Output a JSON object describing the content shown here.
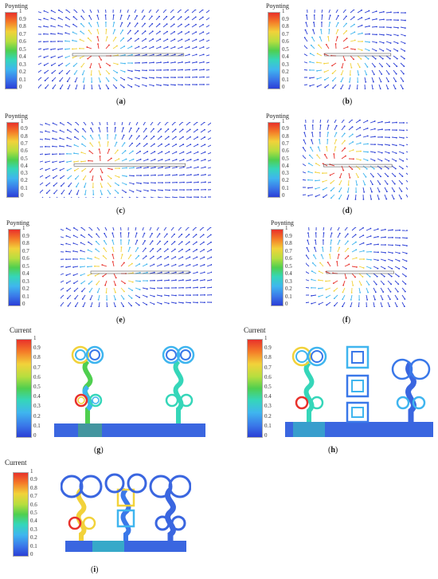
{
  "colorbar": {
    "poynting_title": "Poynting",
    "current_title": "Current",
    "ticks": [
      "1",
      "0.9",
      "0.8",
      "0.7",
      "0.6",
      "0.5",
      "0.4",
      "0.3",
      "0.2",
      "0.1",
      "0"
    ]
  },
  "panels": [
    {
      "id": "a",
      "legend": "poynting",
      "caption_pre": "(",
      "label": "a",
      "caption_post": ")"
    },
    {
      "id": "b",
      "legend": "poynting",
      "caption_pre": "(",
      "label": "b",
      "caption_post": ")"
    },
    {
      "id": "c",
      "legend": "poynting",
      "caption_pre": "(",
      "label": "c",
      "caption_post": ")"
    },
    {
      "id": "d",
      "legend": "poynting",
      "caption_pre": "(",
      "label": "d",
      "caption_post": ")"
    },
    {
      "id": "e",
      "legend": "poynting",
      "caption_pre": "(",
      "label": "e",
      "caption_post": ")"
    },
    {
      "id": "f",
      "legend": "poynting",
      "caption_pre": "(",
      "label": "f",
      "caption_post": ")"
    },
    {
      "id": "g",
      "legend": "current",
      "caption_pre": "(",
      "label": "g",
      "caption_post": ")"
    },
    {
      "id": "h",
      "legend": "current",
      "caption_pre": "(",
      "label": "h",
      "caption_post": ")"
    },
    {
      "id": "i",
      "legend": "current",
      "caption_pre": "(",
      "label": "i",
      "caption_post": ")"
    }
  ],
  "colors": {
    "arrow": "#2b3fd6",
    "hot": "#e8312b",
    "warm": "#f2d23a",
    "mid": "#4fcf4f",
    "cool": "#3fb5ef",
    "substrate": "#3a66e0"
  }
}
